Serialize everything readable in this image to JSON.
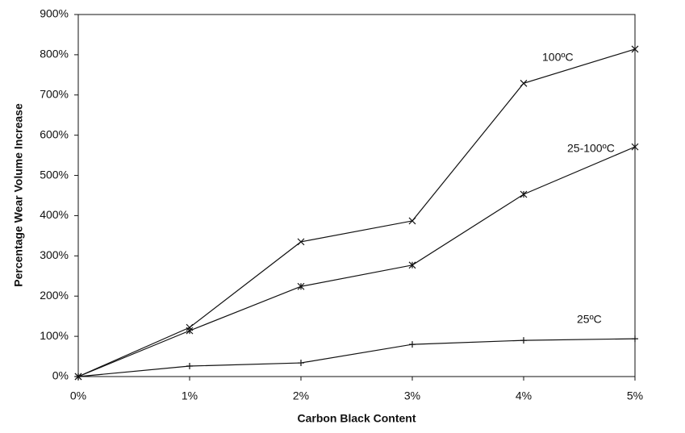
{
  "chart_data": {
    "type": "line",
    "x_label": "Carbon Black Content",
    "y_label": "Percentage Wear Volume Increase",
    "x": [
      0,
      1,
      2,
      3,
      4,
      5
    ],
    "xlim": [
      0,
      5
    ],
    "xticks": [
      {
        "value": 0,
        "label": "0%"
      },
      {
        "value": 1,
        "label": "1%"
      },
      {
        "value": 2,
        "label": "2%"
      },
      {
        "value": 3,
        "label": "3%"
      },
      {
        "value": 4,
        "label": "4%"
      },
      {
        "value": 5,
        "label": "5%"
      }
    ],
    "ylim": [
      0,
      900
    ],
    "yticks": [
      {
        "value": 0,
        "label": "0%"
      },
      {
        "value": 100,
        "label": "100%"
      },
      {
        "value": 200,
        "label": "200%"
      },
      {
        "value": 300,
        "label": "300%"
      },
      {
        "value": 400,
        "label": "400%"
      },
      {
        "value": 500,
        "label": "500%"
      },
      {
        "value": 600,
        "label": "600%"
      },
      {
        "value": 700,
        "label": "700%"
      },
      {
        "value": 800,
        "label": "800%"
      },
      {
        "value": 900,
        "label": "900%"
      }
    ],
    "grid": false,
    "series": [
      {
        "name": "100ºC",
        "color": "#111111",
        "marker": "x",
        "values": [
          0,
          122,
          335,
          387,
          729,
          814
        ]
      },
      {
        "name": "25-100ºC",
        "color": "#111111",
        "marker": "asterisk",
        "values": [
          0,
          114,
          224,
          277,
          453,
          571
        ]
      },
      {
        "name": "25ºC",
        "color": "#111111",
        "marker": "plus",
        "values": [
          0,
          26,
          34,
          80,
          90,
          94
        ]
      }
    ]
  }
}
